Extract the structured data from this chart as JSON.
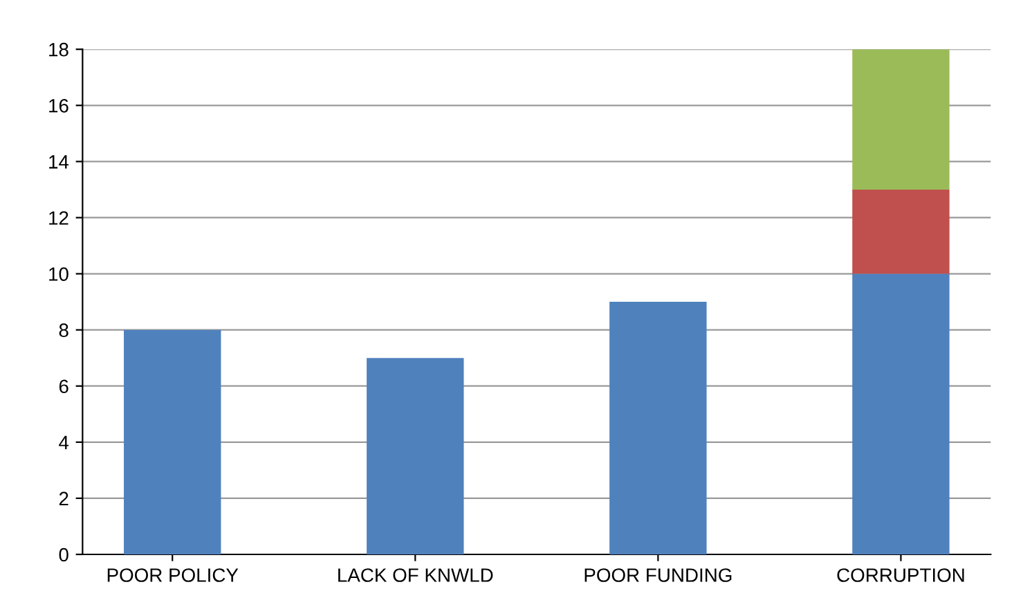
{
  "chart_data": {
    "type": "bar",
    "stacked": true,
    "categories": [
      "POOR POLICY",
      "LACK OF KNWLD",
      "POOR FUNDING",
      "CORRUPTION"
    ],
    "series": [
      {
        "color": "#4f81bd",
        "values": [
          8,
          7,
          9,
          10
        ]
      },
      {
        "color": "#c0504d",
        "values": [
          null,
          null,
          null,
          3
        ]
      },
      {
        "color": "#9bbb59",
        "values": [
          null,
          null,
          null,
          5
        ]
      }
    ],
    "ylim": [
      0,
      18
    ],
    "yticks": [
      0,
      2,
      4,
      6,
      8,
      10,
      12,
      14,
      16,
      18
    ],
    "grid": "y"
  }
}
